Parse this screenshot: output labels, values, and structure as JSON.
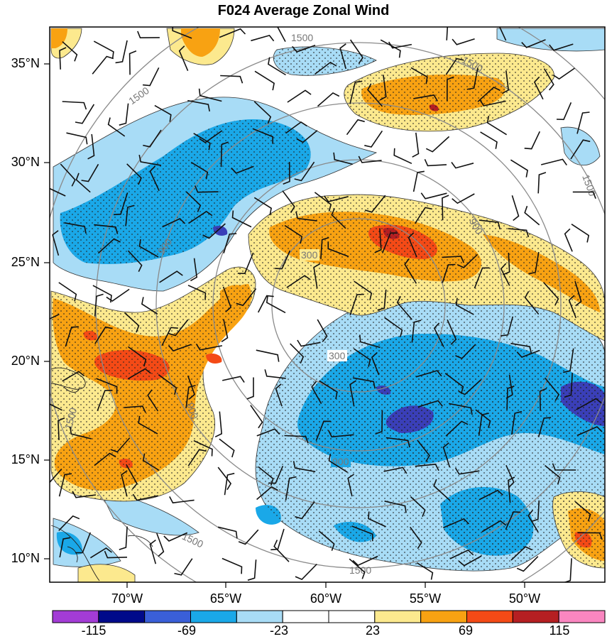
{
  "title": "F024 Average Zonal Wind",
  "lat_labels": [
    "35°N",
    "30°N",
    "25°N",
    "20°N",
    "15°N",
    "10°N"
  ],
  "lon_labels": [
    "70°W",
    "65°W",
    "60°W",
    "55°W",
    "50°W"
  ],
  "ring_labels": [
    "300",
    "300",
    "900",
    "900",
    "900",
    "900",
    "1500",
    "1500",
    "1500",
    "1500",
    "1500",
    "1500",
    "1500"
  ],
  "colorbar": {
    "colors": [
      "#a33cd6",
      "#000a8a",
      "#3a5fd8",
      "#1aa8e8",
      "#a8dcf6",
      "#ffffff",
      "#ffffff",
      "#fce98e",
      "#f8a212",
      "#f44a16",
      "#b51f22",
      "#fa86c0"
    ],
    "labels": [
      "-115",
      "-69",
      "-23",
      "23",
      "69",
      "115"
    ]
  },
  "colors": {
    "very_strong_neg": "#3a3fb8",
    "strong_neg": "#1aa8e8",
    "weak_neg": "#a8dcf6",
    "weak_pos": "#fce98e",
    "strong_pos": "#f8a212",
    "very_strong_pos": "#f44a16",
    "extreme_pos": "#b51f22",
    "ring": "#8a8a8a",
    "barb": "#111111"
  },
  "map_elements": {
    "stipple": "stipple-pattern",
    "rings": "range-rings",
    "barbs": "wind-barbs"
  }
}
